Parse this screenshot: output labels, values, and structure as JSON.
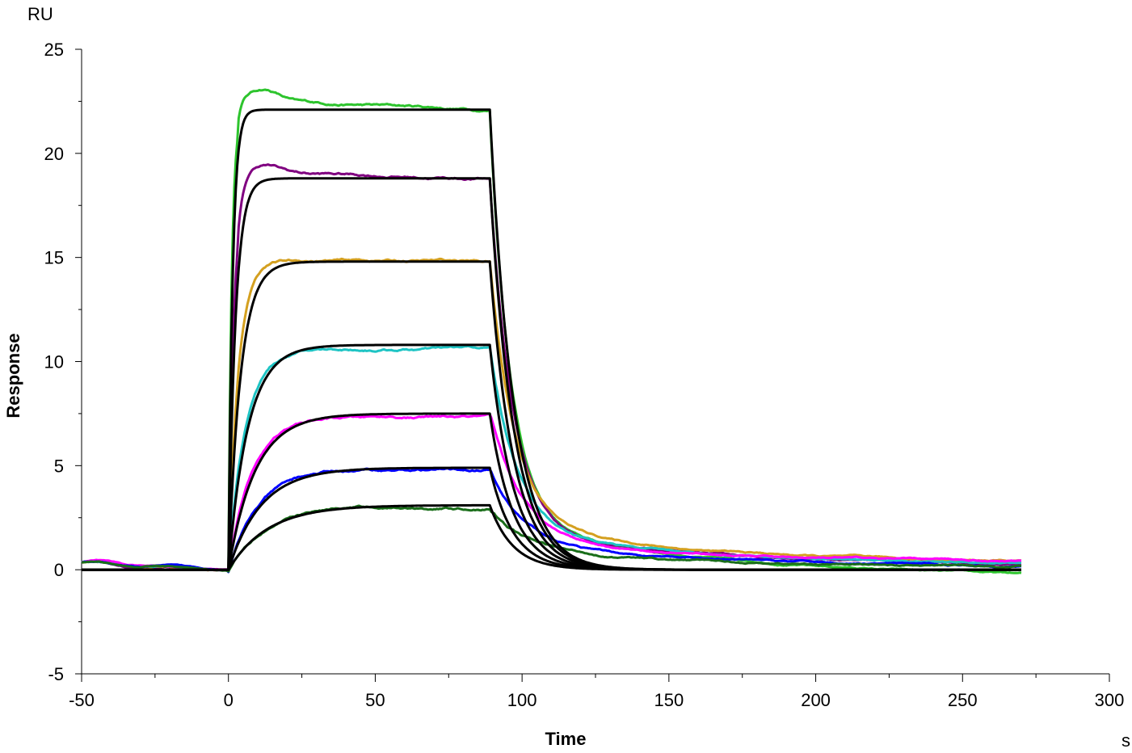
{
  "chart_data": {
    "type": "line",
    "title": "",
    "xlabel": "Time",
    "ylabel": "Response",
    "x_unit": "s",
    "y_unit": "RU",
    "xlim": [
      -50,
      300
    ],
    "ylim": [
      -5,
      25
    ],
    "x_ticks": [
      -50,
      0,
      50,
      100,
      150,
      200,
      250,
      300
    ],
    "y_ticks": [
      -5,
      0,
      5,
      10,
      15,
      20,
      25
    ],
    "x_tick_labels": [
      "-50",
      "0",
      "50",
      "100",
      "150",
      "200",
      "250",
      "300"
    ],
    "y_tick_labels": [
      "-5",
      "0",
      "5",
      "10",
      "15",
      "20",
      "25"
    ],
    "grid": false,
    "legend": "none",
    "injection": {
      "start": 0,
      "end": 89,
      "run_end": 270
    },
    "series": [
      {
        "kind": "measured",
        "color": "#2dc42d",
        "plateau": 22.1,
        "peak_overshoot": 0.6,
        "assoc_rate": 0.9,
        "dissoc_rate": 0.14,
        "slow_tail": 2.2,
        "tail_end": -0.4
      },
      {
        "kind": "measured",
        "color": "#800080",
        "plateau": 18.8,
        "peak_overshoot": 0.4,
        "assoc_rate": 0.55,
        "dissoc_rate": 0.13,
        "slow_tail": 2.0,
        "tail_end": 0.1
      },
      {
        "kind": "measured",
        "color": "#d4a020",
        "plateau": 14.8,
        "peak_overshoot": 0.1,
        "assoc_rate": 0.3,
        "dissoc_rate": 0.12,
        "slow_tail": 2.4,
        "tail_end": 0.25
      },
      {
        "kind": "measured",
        "color": "#1ec4c4",
        "plateau": 10.6,
        "peak_overshoot": 0.0,
        "assoc_rate": 0.18,
        "dissoc_rate": 0.11,
        "slow_tail": 2.0,
        "tail_end": 0.2
      },
      {
        "kind": "measured",
        "color": "#ff00ff",
        "plateau": 7.3,
        "peak_overshoot": 0.0,
        "assoc_rate": 0.13,
        "dissoc_rate": 0.1,
        "slow_tail": 1.8,
        "tail_end": 0.3
      },
      {
        "kind": "measured",
        "color": "#0000ff",
        "plateau": 4.8,
        "peak_overshoot": 0.0,
        "assoc_rate": 0.1,
        "dissoc_rate": 0.09,
        "slow_tail": 1.3,
        "tail_end": 0.1
      },
      {
        "kind": "measured",
        "color": "#1a6e1a",
        "plateau": 3.0,
        "peak_overshoot": 0.0,
        "assoc_rate": 0.09,
        "dissoc_rate": 0.08,
        "slow_tail": 1.0,
        "tail_end": 0.1
      },
      {
        "kind": "fit",
        "color": "#000000",
        "plateau": 22.1,
        "assoc_rate": 0.7,
        "dissoc_rate": 0.125
      },
      {
        "kind": "fit",
        "color": "#000000",
        "plateau": 18.8,
        "assoc_rate": 0.42,
        "dissoc_rate": 0.125
      },
      {
        "kind": "fit",
        "color": "#000000",
        "plateau": 14.8,
        "assoc_rate": 0.24,
        "dissoc_rate": 0.125
      },
      {
        "kind": "fit",
        "color": "#000000",
        "plateau": 10.8,
        "assoc_rate": 0.15,
        "dissoc_rate": 0.125
      },
      {
        "kind": "fit",
        "color": "#000000",
        "plateau": 7.5,
        "assoc_rate": 0.11,
        "dissoc_rate": 0.125
      },
      {
        "kind": "fit",
        "color": "#000000",
        "plateau": 4.9,
        "assoc_rate": 0.09,
        "dissoc_rate": 0.125
      },
      {
        "kind": "fit",
        "color": "#000000",
        "plateau": 3.1,
        "assoc_rate": 0.075,
        "dissoc_rate": 0.125
      }
    ]
  }
}
